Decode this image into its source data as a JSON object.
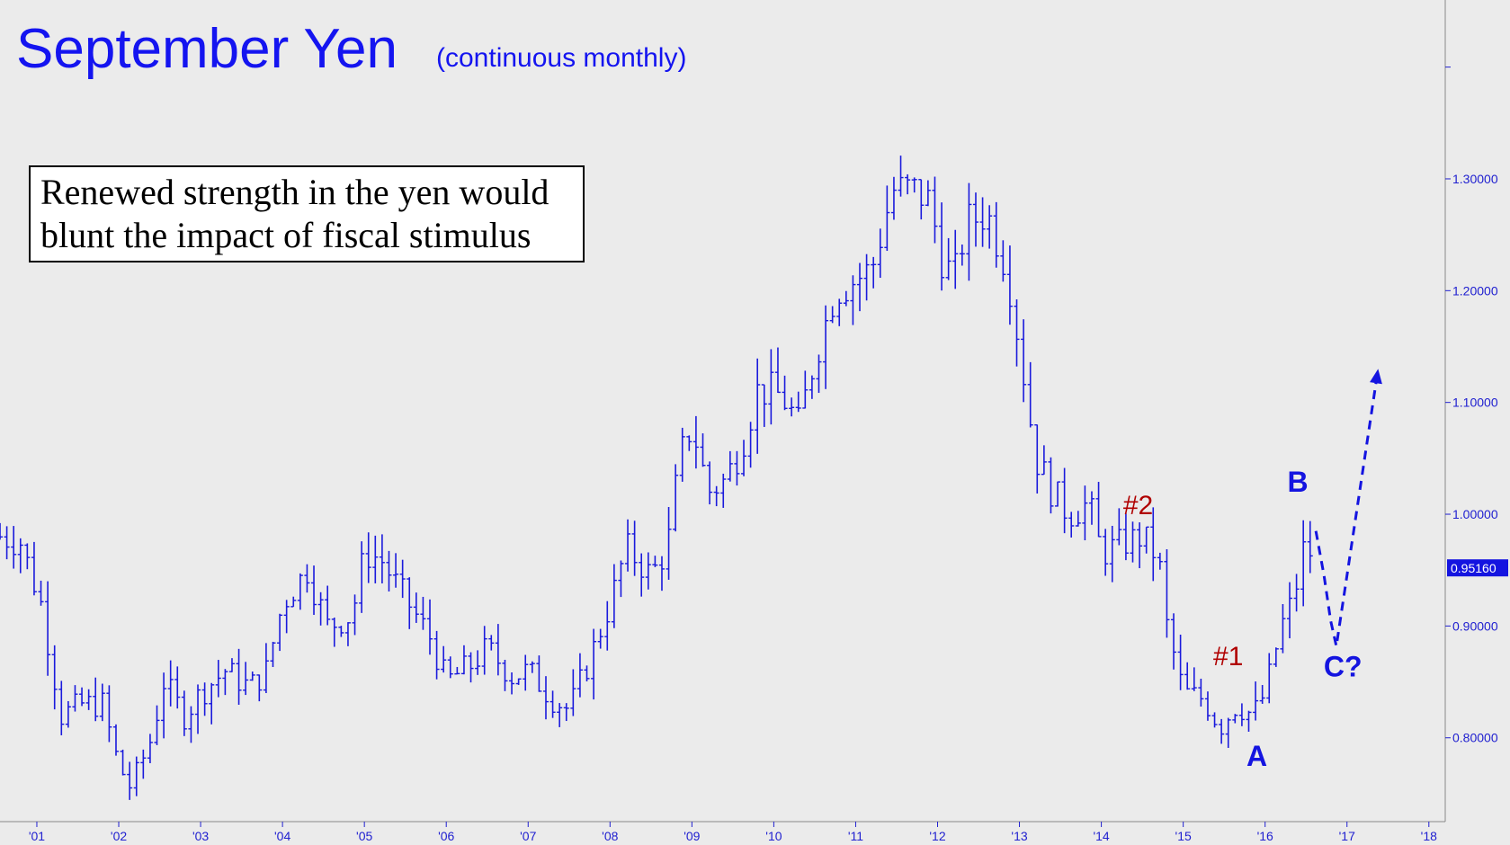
{
  "chart_data": {
    "type": "ohlc",
    "title": "September Yen",
    "subtitle": "(continuous monthly)",
    "series_color": "#1a1adc",
    "x_range": [
      2000.55,
      2018.2
    ],
    "y_range": [
      0.725,
      1.46
    ],
    "x_ticks": [
      {
        "t": 2001.0,
        "label": "'01"
      },
      {
        "t": 2002.0,
        "label": "'02"
      },
      {
        "t": 2003.0,
        "label": "'03"
      },
      {
        "t": 2004.0,
        "label": "'04"
      },
      {
        "t": 2005.0,
        "label": "'05"
      },
      {
        "t": 2006.0,
        "label": "'06"
      },
      {
        "t": 2007.0,
        "label": "'07"
      },
      {
        "t": 2008.0,
        "label": "'08"
      },
      {
        "t": 2009.0,
        "label": "'09"
      },
      {
        "t": 2010.0,
        "label": "'10"
      },
      {
        "t": 2011.0,
        "label": "'11"
      },
      {
        "t": 2012.0,
        "label": "'12"
      },
      {
        "t": 2013.0,
        "label": "'13"
      },
      {
        "t": 2014.0,
        "label": "'14"
      },
      {
        "t": 2015.0,
        "label": "'15"
      },
      {
        "t": 2016.0,
        "label": "'16"
      },
      {
        "t": 2017.0,
        "label": "'17"
      },
      {
        "t": 2018.0,
        "label": "'18"
      }
    ],
    "y_ticks": [
      {
        "v": 0.8,
        "label": "0.80000"
      },
      {
        "v": 0.9,
        "label": "0.90000"
      },
      {
        "v": 1.0,
        "label": "1.00000"
      },
      {
        "v": 1.1,
        "label": "1.10000"
      },
      {
        "v": 1.2,
        "label": "1.20000"
      },
      {
        "v": 1.3,
        "label": "1.30000"
      }
    ],
    "y_minor_ticks": [
      0.7,
      1.4
    ],
    "last_price": {
      "v": 0.9516,
      "label": "0.95160",
      "color": "#1414e0"
    },
    "key_points": [
      {
        "t": 2000.55,
        "v": 0.98
      },
      {
        "t": 2000.8,
        "v": 0.975
      },
      {
        "t": 2001.05,
        "v": 0.92
      },
      {
        "t": 2001.3,
        "v": 0.82
      },
      {
        "t": 2001.55,
        "v": 0.83
      },
      {
        "t": 2001.8,
        "v": 0.83
      },
      {
        "t": 2002.0,
        "v": 0.775
      },
      {
        "t": 2002.15,
        "v": 0.755
      },
      {
        "t": 2002.4,
        "v": 0.8
      },
      {
        "t": 2002.55,
        "v": 0.85
      },
      {
        "t": 2002.8,
        "v": 0.82
      },
      {
        "t": 2003.0,
        "v": 0.84
      },
      {
        "t": 2003.3,
        "v": 0.86
      },
      {
        "t": 2003.6,
        "v": 0.845
      },
      {
        "t": 2003.8,
        "v": 0.86
      },
      {
        "t": 2004.0,
        "v": 0.92
      },
      {
        "t": 2004.3,
        "v": 0.95
      },
      {
        "t": 2004.55,
        "v": 0.9
      },
      {
        "t": 2004.85,
        "v": 0.91
      },
      {
        "t": 2005.0,
        "v": 0.965
      },
      {
        "t": 2005.2,
        "v": 0.96
      },
      {
        "t": 2005.45,
        "v": 0.93
      },
      {
        "t": 2005.8,
        "v": 0.89
      },
      {
        "t": 2006.0,
        "v": 0.85
      },
      {
        "t": 2006.3,
        "v": 0.865
      },
      {
        "t": 2006.5,
        "v": 0.88
      },
      {
        "t": 2006.8,
        "v": 0.855
      },
      {
        "t": 2007.0,
        "v": 0.86
      },
      {
        "t": 2007.3,
        "v": 0.835
      },
      {
        "t": 2007.5,
        "v": 0.825
      },
      {
        "t": 2007.75,
        "v": 0.87
      },
      {
        "t": 2008.0,
        "v": 0.92
      },
      {
        "t": 2008.2,
        "v": 0.97
      },
      {
        "t": 2008.5,
        "v": 0.945
      },
      {
        "t": 2008.7,
        "v": 0.97
      },
      {
        "t": 2008.85,
        "v": 1.05
      },
      {
        "t": 2009.0,
        "v": 1.08
      },
      {
        "t": 2009.2,
        "v": 1.02
      },
      {
        "t": 2009.4,
        "v": 1.03
      },
      {
        "t": 2009.6,
        "v": 1.06
      },
      {
        "t": 2009.8,
        "v": 1.11
      },
      {
        "t": 2010.0,
        "v": 1.11
      },
      {
        "t": 2010.15,
        "v": 1.1
      },
      {
        "t": 2010.3,
        "v": 1.08
      },
      {
        "t": 2010.5,
        "v": 1.14
      },
      {
        "t": 2010.75,
        "v": 1.2
      },
      {
        "t": 2011.0,
        "v": 1.21
      },
      {
        "t": 2011.2,
        "v": 1.22
      },
      {
        "t": 2011.45,
        "v": 1.29
      },
      {
        "t": 2011.7,
        "v": 1.29
      },
      {
        "t": 2011.9,
        "v": 1.28
      },
      {
        "t": 2012.05,
        "v": 1.23
      },
      {
        "t": 2012.2,
        "v": 1.21
      },
      {
        "t": 2012.35,
        "v": 1.26
      },
      {
        "t": 2012.6,
        "v": 1.27
      },
      {
        "t": 2012.85,
        "v": 1.22
      },
      {
        "t": 2013.0,
        "v": 1.15
      },
      {
        "t": 2013.2,
        "v": 1.05
      },
      {
        "t": 2013.4,
        "v": 1.02
      },
      {
        "t": 2013.6,
        "v": 1.0
      },
      {
        "t": 2013.85,
        "v": 1.01
      },
      {
        "t": 2014.0,
        "v": 0.965
      },
      {
        "t": 2014.3,
        "v": 0.975
      },
      {
        "t": 2014.5,
        "v": 0.98
      },
      {
        "t": 2014.7,
        "v": 0.96
      },
      {
        "t": 2014.8,
        "v": 0.9
      },
      {
        "t": 2015.0,
        "v": 0.84
      },
      {
        "t": 2015.25,
        "v": 0.835
      },
      {
        "t": 2015.45,
        "v": 0.81
      },
      {
        "t": 2015.65,
        "v": 0.83
      },
      {
        "t": 2015.85,
        "v": 0.82
      },
      {
        "t": 2016.0,
        "v": 0.84
      },
      {
        "t": 2016.2,
        "v": 0.9
      },
      {
        "t": 2016.35,
        "v": 0.925
      },
      {
        "t": 2016.5,
        "v": 0.98
      },
      {
        "t": 2016.6,
        "v": 0.9516
      }
    ],
    "projection": [
      {
        "t": 2016.62,
        "v": 0.985
      },
      {
        "t": 2016.72,
        "v": 0.945
      },
      {
        "t": 2016.8,
        "v": 0.905
      },
      {
        "t": 2016.87,
        "v": 0.882
      },
      {
        "t": 2017.38,
        "v": 1.13
      }
    ],
    "projection_color": "#1414e0",
    "annotations": [
      {
        "text": "#2",
        "t": 2014.45,
        "v": 1.0,
        "style": "wave-red"
      },
      {
        "text": "#1",
        "t": 2015.55,
        "v": 0.865,
        "style": "wave-red"
      },
      {
        "text": "B",
        "t": 2016.4,
        "v": 1.02,
        "style": "wave-blue"
      },
      {
        "text": "A",
        "t": 2015.9,
        "v": 0.775,
        "style": "wave-blue"
      },
      {
        "text": "C?",
        "t": 2016.95,
        "v": 0.855,
        "style": "wave-blue"
      }
    ],
    "note": {
      "lines": [
        "Renewed strength in the yen would",
        "blunt the impact of fiscal stimulus"
      ]
    }
  }
}
